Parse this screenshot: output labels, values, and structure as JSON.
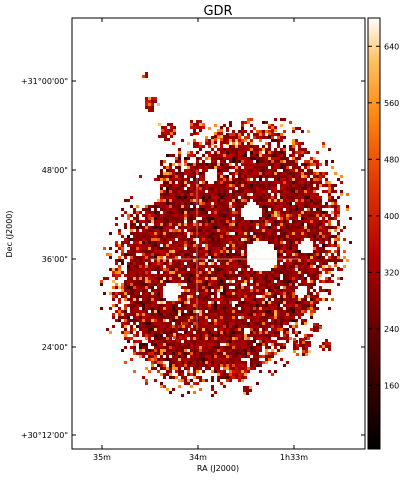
{
  "chart_data": {
    "type": "heatmap",
    "title": "GDR",
    "xlabel": "RA (J2000)",
    "ylabel": "Dec (J2000)",
    "x_ticks": [
      "35m",
      "34m",
      "1h33m"
    ],
    "y_ticks": [
      "+30°12'00\"",
      "24'00\"",
      "36'00\"",
      "48'00\"",
      "+31°00'00\""
    ],
    "grid": false,
    "colorbar": {
      "location": "right",
      "ticks": [
        160,
        240,
        320,
        400,
        480,
        560,
        640
      ],
      "range": [
        70,
        680
      ],
      "colormap": "gist_heat"
    },
    "map": {
      "background": "#ffffff",
      "typical_values": [
        280,
        300,
        320,
        340,
        360
      ],
      "low_values": [
        140,
        170,
        200
      ],
      "high_values": [
        420,
        480,
        540,
        600,
        680
      ]
    }
  }
}
